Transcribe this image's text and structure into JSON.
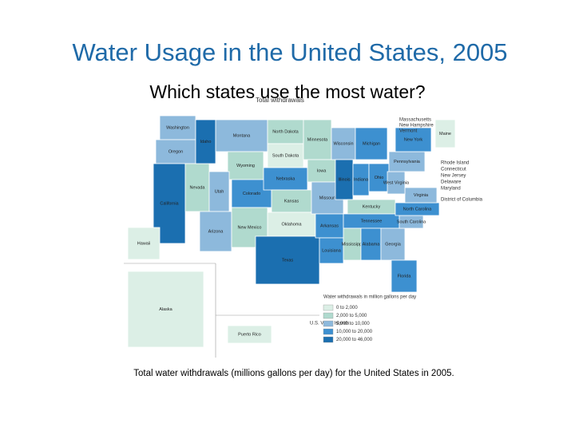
{
  "header": {
    "title": "Water Usage in the United States, 2005",
    "subtitle": "Which states use the most water?"
  },
  "map": {
    "title": "Total withdrawals",
    "legend": {
      "title": "Water withdrawals in million gallons per day",
      "items": [
        {
          "label": "0 to 2,000",
          "color": "#dcefe6"
        },
        {
          "label": "2,000 to 5,000",
          "color": "#b0dace"
        },
        {
          "label": "5,000 to 10,000",
          "color": "#8db9dc"
        },
        {
          "label": "10,000 to 20,000",
          "color": "#3d90d0"
        },
        {
          "label": "20,000 to 46,000",
          "color": "#1b6fb0"
        }
      ]
    },
    "states": [
      {
        "name": "Washington",
        "class": 2
      },
      {
        "name": "Oregon",
        "class": 2
      },
      {
        "name": "California",
        "class": 4
      },
      {
        "name": "Nevada",
        "class": 1
      },
      {
        "name": "Idaho",
        "class": 4
      },
      {
        "name": "Montana",
        "class": 2
      },
      {
        "name": "Wyoming",
        "class": 1
      },
      {
        "name": "Utah",
        "class": 2
      },
      {
        "name": "Colorado",
        "class": 3
      },
      {
        "name": "Arizona",
        "class": 2
      },
      {
        "name": "New Mexico",
        "class": 1
      },
      {
        "name": "North Dakota",
        "class": 1
      },
      {
        "name": "South Dakota",
        "class": 0
      },
      {
        "name": "Nebraska",
        "class": 3
      },
      {
        "name": "Kansas",
        "class": 1
      },
      {
        "name": "Oklahoma",
        "class": 0
      },
      {
        "name": "Texas",
        "class": 4
      },
      {
        "name": "Minnesota",
        "class": 1
      },
      {
        "name": "Iowa",
        "class": 1
      },
      {
        "name": "Missouri",
        "class": 2
      },
      {
        "name": "Arkansas",
        "class": 3
      },
      {
        "name": "Louisiana",
        "class": 3
      },
      {
        "name": "Wisconsin",
        "class": 2
      },
      {
        "name": "Illinois",
        "class": 4
      },
      {
        "name": "Michigan",
        "class": 3
      },
      {
        "name": "Indiana",
        "class": 3
      },
      {
        "name": "Ohio",
        "class": 3
      },
      {
        "name": "Kentucky",
        "class": 1
      },
      {
        "name": "Tennessee",
        "class": 3
      },
      {
        "name": "Mississippi",
        "class": 1
      },
      {
        "name": "Alabama",
        "class": 3
      },
      {
        "name": "Georgia",
        "class": 2
      },
      {
        "name": "Florida",
        "class": 3
      },
      {
        "name": "South Carolina",
        "class": 2
      },
      {
        "name": "North Carolina",
        "class": 3
      },
      {
        "name": "Virginia",
        "class": 2
      },
      {
        "name": "West Virginia",
        "class": 2
      },
      {
        "name": "Pennsylvania",
        "class": 2
      },
      {
        "name": "New York",
        "class": 3
      },
      {
        "name": "Maine",
        "class": 0
      },
      {
        "name": "Alaska",
        "class": 0
      },
      {
        "name": "Hawaii",
        "class": 0
      },
      {
        "name": "Puerto Rico",
        "class": 0
      }
    ],
    "callouts": [
      "Massachusetts",
      "New Hampshire",
      "Vermont",
      "Rhode Island",
      "Connecticut",
      "New Jersey",
      "Delaware",
      "Maryland",
      "District of Columbia",
      "U.S. Virgin Islands"
    ]
  },
  "caption": "Total water withdrawals (millions gallons per day) for the United States in 2005."
}
